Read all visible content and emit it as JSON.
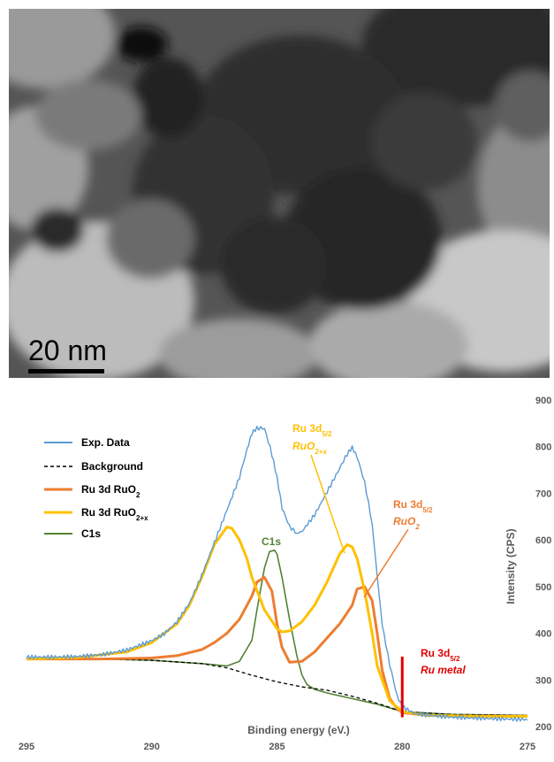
{
  "tem_image": {
    "scale_bar_label": "20 nm"
  },
  "chart_data": {
    "type": "line",
    "title": "",
    "xlabel": "Binding energy (eV.)",
    "ylabel": "Intensity (CPS)",
    "xlim": [
      295,
      275
    ],
    "ylim": [
      200,
      900
    ],
    "x_ticks": [
      "295",
      "290",
      "285",
      "280",
      "275"
    ],
    "y_ticks": [
      "200",
      "300",
      "400",
      "500",
      "600",
      "700",
      "800",
      "900"
    ],
    "legend_position": "top-left",
    "legend": [
      {
        "label": "Exp. Data",
        "sub": "",
        "color": "#5b9bd5",
        "style": "solid"
      },
      {
        "label": "Background",
        "sub": "",
        "color": "#000000",
        "style": "dashed"
      },
      {
        "label": "Ru 3d RuO",
        "sub": "2",
        "color": "#ed7d31",
        "style": "solid"
      },
      {
        "label": "Ru 3d RuO",
        "sub": "2+x",
        "color": "#ffc000",
        "style": "solid"
      },
      {
        "label": "C1s",
        "sub": "",
        "color": "#548235",
        "style": "solid"
      }
    ],
    "series": [
      {
        "name": "Exp. Data",
        "color": "#5b9bd5",
        "x": [
          295,
          294,
          293,
          292,
          291,
          290,
          289.5,
          289,
          288.5,
          288,
          287.5,
          287,
          286.5,
          286.2,
          286,
          285.8,
          285.5,
          285.2,
          285,
          284.8,
          284.5,
          284.2,
          284,
          283.5,
          283,
          282.5,
          282.2,
          282,
          281.8,
          281.5,
          281.2,
          281,
          280.8,
          280.5,
          280.2,
          280,
          279.5,
          279,
          278.5,
          278,
          277,
          276,
          275
        ],
        "y": [
          345,
          345,
          346,
          350,
          360,
          380,
          395,
          420,
          460,
          520,
          590,
          660,
          730,
          790,
          825,
          840,
          835,
          780,
          730,
          670,
          625,
          610,
          615,
          650,
          700,
          750,
          780,
          795,
          780,
          720,
          630,
          520,
          420,
          330,
          260,
          240,
          225,
          222,
          220,
          218,
          216,
          215,
          214
        ]
      },
      {
        "name": "Background",
        "color": "#000000",
        "x": [
          295,
          292,
          290,
          288,
          287,
          286,
          285,
          284,
          283,
          282,
          281,
          280,
          278,
          275
        ],
        "y": [
          345,
          345,
          342,
          335,
          326,
          310,
          296,
          285,
          278,
          265,
          250,
          232,
          226,
          224
        ]
      },
      {
        "name": "Ru 3d RuO2",
        "color": "#ed7d31",
        "x": [
          295,
          292,
          290,
          289,
          288,
          287.5,
          287,
          286.5,
          286,
          285.8,
          285.5,
          285.2,
          285,
          284.8,
          284.5,
          284,
          283.5,
          283,
          282.5,
          282,
          281.8,
          281.5,
          281.2,
          281,
          280.8,
          280.5,
          280.2,
          280,
          279,
          277,
          275
        ],
        "y": [
          345,
          345,
          347,
          352,
          365,
          380,
          400,
          430,
          480,
          510,
          520,
          490,
          420,
          370,
          338,
          340,
          360,
          390,
          420,
          460,
          495,
          500,
          470,
          400,
          320,
          260,
          238,
          230,
          224,
          222,
          222
        ]
      },
      {
        "name": "Ru 3d RuO2+x",
        "color": "#ffc000",
        "x": [
          295,
          293,
          291,
          290,
          289,
          288.5,
          288,
          287.5,
          287,
          286.8,
          286.5,
          286.2,
          286,
          285.5,
          285,
          284.8,
          284.5,
          284,
          283.5,
          283,
          282.5,
          282.2,
          282,
          281.8,
          281.5,
          281.2,
          281,
          280.5,
          280,
          279,
          277,
          275
        ],
        "y": [
          345,
          348,
          360,
          380,
          420,
          460,
          520,
          590,
          628,
          625,
          600,
          560,
          520,
          450,
          410,
          403,
          405,
          425,
          460,
          510,
          570,
          590,
          585,
          560,
          490,
          400,
          330,
          255,
          232,
          224,
          222,
          222
        ]
      },
      {
        "name": "C1s",
        "color": "#548235",
        "x": [
          295,
          292,
          290,
          288,
          287,
          286.5,
          286,
          285.8,
          285.5,
          285.3,
          285.1,
          285,
          284.8,
          284.5,
          284.2,
          284,
          283.8,
          283.5,
          283,
          282,
          281,
          280,
          278,
          275
        ],
        "y": [
          345,
          345,
          342,
          335,
          330,
          340,
          385,
          450,
          540,
          575,
          578,
          570,
          520,
          430,
          350,
          310,
          290,
          280,
          272,
          260,
          248,
          232,
          226,
          224
        ]
      }
    ],
    "marker_line": {
      "name": "Ru 3d5/2 Ru metal",
      "x": 280.0,
      "y0": 220,
      "y1": 350,
      "color": "#e00000"
    },
    "annotations": [
      {
        "main": "Ru 3d",
        "sub": "5/2",
        "italic": "RuO",
        "italic_sub": "2+x",
        "color": "#ffc000"
      },
      {
        "main": "Ru 3d",
        "sub": "5/2",
        "italic": "RuO",
        "italic_sub": "2",
        "color": "#ed7d31"
      },
      {
        "main": "C1s",
        "color": "#548235"
      },
      {
        "main": "Ru 3d",
        "sub": "5/2",
        "italic": "Ru metal",
        "italic_sub": "",
        "color": "#e00000"
      }
    ]
  }
}
